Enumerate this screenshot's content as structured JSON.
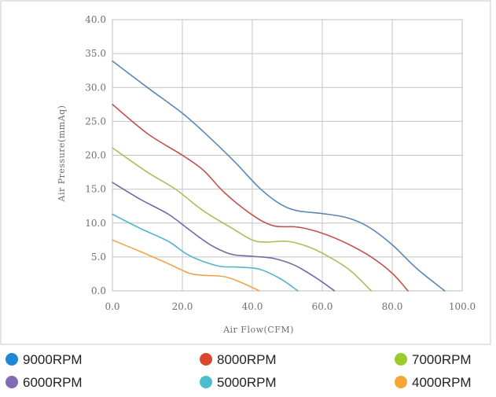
{
  "chart_data": {
    "type": "line",
    "title": "",
    "xlabel": "Air Flow(CFM)",
    "ylabel": "Air Pressure(mmAq)",
    "xlim": [
      0,
      100
    ],
    "ylim": [
      0,
      40
    ],
    "x_ticks": [
      "0.0",
      "20.0",
      "40.0",
      "60.0",
      "80.0",
      "100.0"
    ],
    "y_ticks": [
      "0.0",
      "5.0",
      "10.0",
      "15.0",
      "20.0",
      "25.0",
      "30.0",
      "35.0",
      "40.0"
    ],
    "grid": true,
    "legend_position": "bottom",
    "series": [
      {
        "name": "9000RPM",
        "legend_color": "#1E88D8",
        "line_color": "#5B87B5",
        "points": [
          [
            0,
            33.9
          ],
          [
            10,
            30.0
          ],
          [
            20,
            26.2
          ],
          [
            27,
            23.0
          ],
          [
            35,
            19.0
          ],
          [
            42,
            15.2
          ],
          [
            48,
            12.8
          ],
          [
            53,
            11.8
          ],
          [
            60,
            11.4
          ],
          [
            67,
            10.8
          ],
          [
            73,
            9.5
          ],
          [
            80,
            6.8
          ],
          [
            87,
            3.3
          ],
          [
            95,
            0
          ]
        ]
      },
      {
        "name": "8000RPM",
        "legend_color": "#D9482C",
        "line_color": "#C45151",
        "points": [
          [
            0,
            27.5
          ],
          [
            10,
            23.2
          ],
          [
            20,
            20.0
          ],
          [
            26,
            17.8
          ],
          [
            32,
            14.5
          ],
          [
            40,
            11.2
          ],
          [
            46,
            9.6
          ],
          [
            53,
            9.4
          ],
          [
            60,
            8.5
          ],
          [
            67,
            7.0
          ],
          [
            74,
            5.0
          ],
          [
            80,
            2.6
          ],
          [
            84.5,
            0
          ]
        ]
      },
      {
        "name": "7000RPM",
        "legend_color": "#9BCB2B",
        "line_color": "#A4C15D",
        "points": [
          [
            0,
            21.1
          ],
          [
            10,
            17.5
          ],
          [
            18,
            15.0
          ],
          [
            26,
            11.8
          ],
          [
            34,
            9.3
          ],
          [
            40,
            7.5
          ],
          [
            44,
            7.2
          ],
          [
            50,
            7.3
          ],
          [
            56,
            6.5
          ],
          [
            62,
            5.0
          ],
          [
            68,
            3.0
          ],
          [
            74,
            0
          ]
        ]
      },
      {
        "name": "6000RPM",
        "legend_color": "#7E6CB5",
        "line_color": "#7A63A8",
        "points": [
          [
            0,
            16.0
          ],
          [
            8,
            13.5
          ],
          [
            16,
            11.3
          ],
          [
            22,
            9.0
          ],
          [
            28,
            6.8
          ],
          [
            34,
            5.4
          ],
          [
            40,
            5.1
          ],
          [
            46,
            4.8
          ],
          [
            52,
            3.8
          ],
          [
            58,
            2.0
          ],
          [
            63.5,
            0
          ]
        ]
      },
      {
        "name": "5000RPM",
        "legend_color": "#4EBCD0",
        "line_color": "#52B5CB",
        "points": [
          [
            0,
            11.3
          ],
          [
            8,
            9.2
          ],
          [
            16,
            7.3
          ],
          [
            22,
            5.2
          ],
          [
            30,
            3.7
          ],
          [
            36,
            3.5
          ],
          [
            42,
            3.2
          ],
          [
            48,
            1.8
          ],
          [
            53,
            0
          ]
        ]
      },
      {
        "name": "4000RPM",
        "legend_color": "#F5A637",
        "line_color": "#F2A34A",
        "points": [
          [
            0,
            7.5
          ],
          [
            8,
            5.8
          ],
          [
            16,
            4.0
          ],
          [
            22,
            2.6
          ],
          [
            26,
            2.3
          ],
          [
            32,
            2.1
          ],
          [
            37,
            1.2
          ],
          [
            42,
            0
          ]
        ]
      }
    ]
  }
}
